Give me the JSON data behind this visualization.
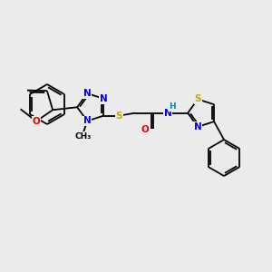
{
  "background_color": "#ebebeb",
  "atom_colors": {
    "C": "#000000",
    "N": "#0000ee",
    "O": "#ee0000",
    "S": "#bbaa00",
    "H": "#008899"
  },
  "bond_color": "#000000",
  "bond_width": 1.3,
  "figsize": [
    3.0,
    3.0
  ],
  "dpi": 100,
  "font_size": 7.5
}
